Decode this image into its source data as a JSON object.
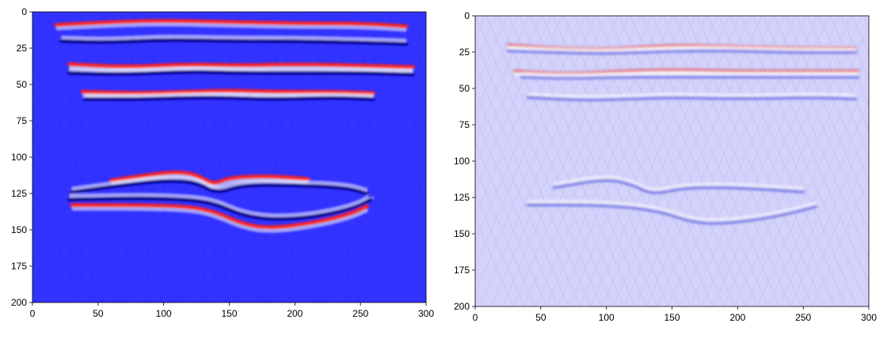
{
  "chart_data": [
    {
      "type": "heatmap",
      "title": "",
      "xlabel": "",
      "ylabel": "",
      "xlim": [
        0,
        300
      ],
      "ylim": [
        200,
        0
      ],
      "x_ticks": [
        "0",
        "50",
        "100",
        "150",
        "200",
        "250",
        "300"
      ],
      "y_ticks": [
        "0",
        "25",
        "50",
        "75",
        "100",
        "125",
        "150",
        "175",
        "200"
      ],
      "colormap": "bwr",
      "base_color": "#3333ff",
      "reflectors": [
        {
          "polarity": "positive",
          "points": [
            [
              18,
              9
            ],
            [
              60,
              7
            ],
            [
              100,
              6
            ],
            [
              150,
              7
            ],
            [
              200,
              8
            ],
            [
              250,
              8
            ],
            [
              285,
              10
            ]
          ]
        },
        {
          "polarity": "negative",
          "points": [
            [
              22,
              20
            ],
            [
              60,
              21
            ],
            [
              100,
              19
            ],
            [
              150,
              20
            ],
            [
              200,
              20
            ],
            [
              250,
              21
            ],
            [
              285,
              22
            ]
          ]
        },
        {
          "polarity": "positive",
          "points": [
            [
              28,
              36
            ],
            [
              70,
              38
            ],
            [
              120,
              36
            ],
            [
              160,
              37
            ],
            [
              200,
              36
            ],
            [
              250,
              37
            ],
            [
              290,
              38
            ]
          ]
        },
        {
          "polarity": "negative",
          "points": [
            [
              28,
              42
            ],
            [
              70,
              43
            ],
            [
              120,
              41
            ],
            [
              160,
              42
            ],
            [
              200,
              42
            ],
            [
              250,
              42
            ],
            [
              290,
              43
            ]
          ]
        },
        {
          "polarity": "positive",
          "points": [
            [
              38,
              55
            ],
            [
              80,
              56
            ],
            [
              120,
              55
            ],
            [
              150,
              54
            ],
            [
              180,
              55
            ],
            [
              230,
              55
            ],
            [
              260,
              56
            ]
          ]
        },
        {
          "polarity": "negative",
          "points": [
            [
              40,
              60
            ],
            [
              80,
              60
            ],
            [
              120,
              59
            ],
            [
              150,
              59
            ],
            [
              180,
              60
            ],
            [
              230,
              59
            ],
            [
              260,
              60
            ]
          ]
        },
        {
          "polarity": "positive",
          "points": [
            [
              60,
              116
            ],
            [
              90,
              112
            ],
            [
              110,
              110
            ],
            [
              125,
              112
            ],
            [
              138,
              119
            ],
            [
              150,
              114
            ],
            [
              180,
              113
            ],
            [
              210,
              115
            ]
          ]
        },
        {
          "polarity": "negative",
          "points": [
            [
              30,
              124
            ],
            [
              70,
              119
            ],
            [
              100,
              116
            ],
            [
              125,
              117
            ],
            [
              140,
              125
            ],
            [
              160,
              119
            ],
            [
              200,
              119
            ],
            [
              240,
              121
            ],
            [
              255,
              125
            ]
          ]
        },
        {
          "polarity": "negative",
          "points": [
            [
              28,
              129
            ],
            [
              80,
              128
            ],
            [
              120,
              129
            ],
            [
              140,
              132
            ],
            [
              160,
              140
            ],
            [
              185,
              143
            ],
            [
              215,
              141
            ],
            [
              245,
              135
            ],
            [
              258,
              129
            ]
          ]
        },
        {
          "polarity": "positive",
          "points": [
            [
              30,
              133
            ],
            [
              80,
              133
            ],
            [
              120,
              134
            ],
            [
              140,
              138
            ],
            [
              160,
              146
            ],
            [
              180,
              149
            ],
            [
              210,
              146
            ],
            [
              240,
              140
            ],
            [
              255,
              134
            ]
          ]
        }
      ]
    },
    {
      "type": "heatmap",
      "title": "",
      "xlabel": "",
      "ylabel": "",
      "xlim": [
        0,
        300
      ],
      "ylim": [
        200,
        0
      ],
      "x_ticks": [
        "0",
        "50",
        "100",
        "150",
        "200",
        "250",
        "300"
      ],
      "y_ticks": [
        "0",
        "25",
        "50",
        "75",
        "100",
        "125",
        "150",
        "175",
        "200"
      ],
      "colormap": "bwr",
      "base_color": "#d2d2fb",
      "reflectors": [
        {
          "polarity": "positive",
          "points": [
            [
              25,
              20
            ],
            [
              60,
              22
            ],
            [
              100,
              23
            ],
            [
              150,
              20
            ],
            [
              200,
              21
            ],
            [
              240,
              22
            ],
            [
              290,
              22
            ]
          ]
        },
        {
          "polarity": "negative",
          "points": [
            [
              25,
              24
            ],
            [
              60,
              25
            ],
            [
              100,
              26
            ],
            [
              150,
              24
            ],
            [
              200,
              24
            ],
            [
              240,
              25
            ],
            [
              290,
              25
            ]
          ]
        },
        {
          "polarity": "positive",
          "points": [
            [
              30,
              38
            ],
            [
              70,
              40
            ],
            [
              110,
              38
            ],
            [
              150,
              37
            ],
            [
              200,
              38
            ],
            [
              250,
              38
            ],
            [
              292,
              38
            ]
          ]
        },
        {
          "polarity": "negative",
          "points": [
            [
              35,
              42
            ],
            [
              70,
              43
            ],
            [
              110,
              42
            ],
            [
              150,
              42
            ],
            [
              200,
              42
            ],
            [
              250,
              42
            ],
            [
              292,
              42
            ]
          ]
        },
        {
          "polarity": "negative",
          "points": [
            [
              40,
              56
            ],
            [
              80,
              58
            ],
            [
              120,
              57
            ],
            [
              150,
              56
            ],
            [
              200,
              57
            ],
            [
              260,
              56
            ],
            [
              290,
              57
            ]
          ]
        },
        {
          "polarity": "negative",
          "points": [
            [
              60,
              118
            ],
            [
              100,
              112
            ],
            [
              120,
              116
            ],
            [
              135,
              123
            ],
            [
              160,
              118
            ],
            [
              200,
              118
            ],
            [
              250,
              121
            ]
          ]
        },
        {
          "polarity": "negative",
          "points": [
            [
              40,
              130
            ],
            [
              100,
              130
            ],
            [
              140,
              134
            ],
            [
              165,
              142
            ],
            [
              190,
              143
            ],
            [
              230,
              138
            ],
            [
              260,
              131
            ]
          ]
        }
      ]
    }
  ]
}
